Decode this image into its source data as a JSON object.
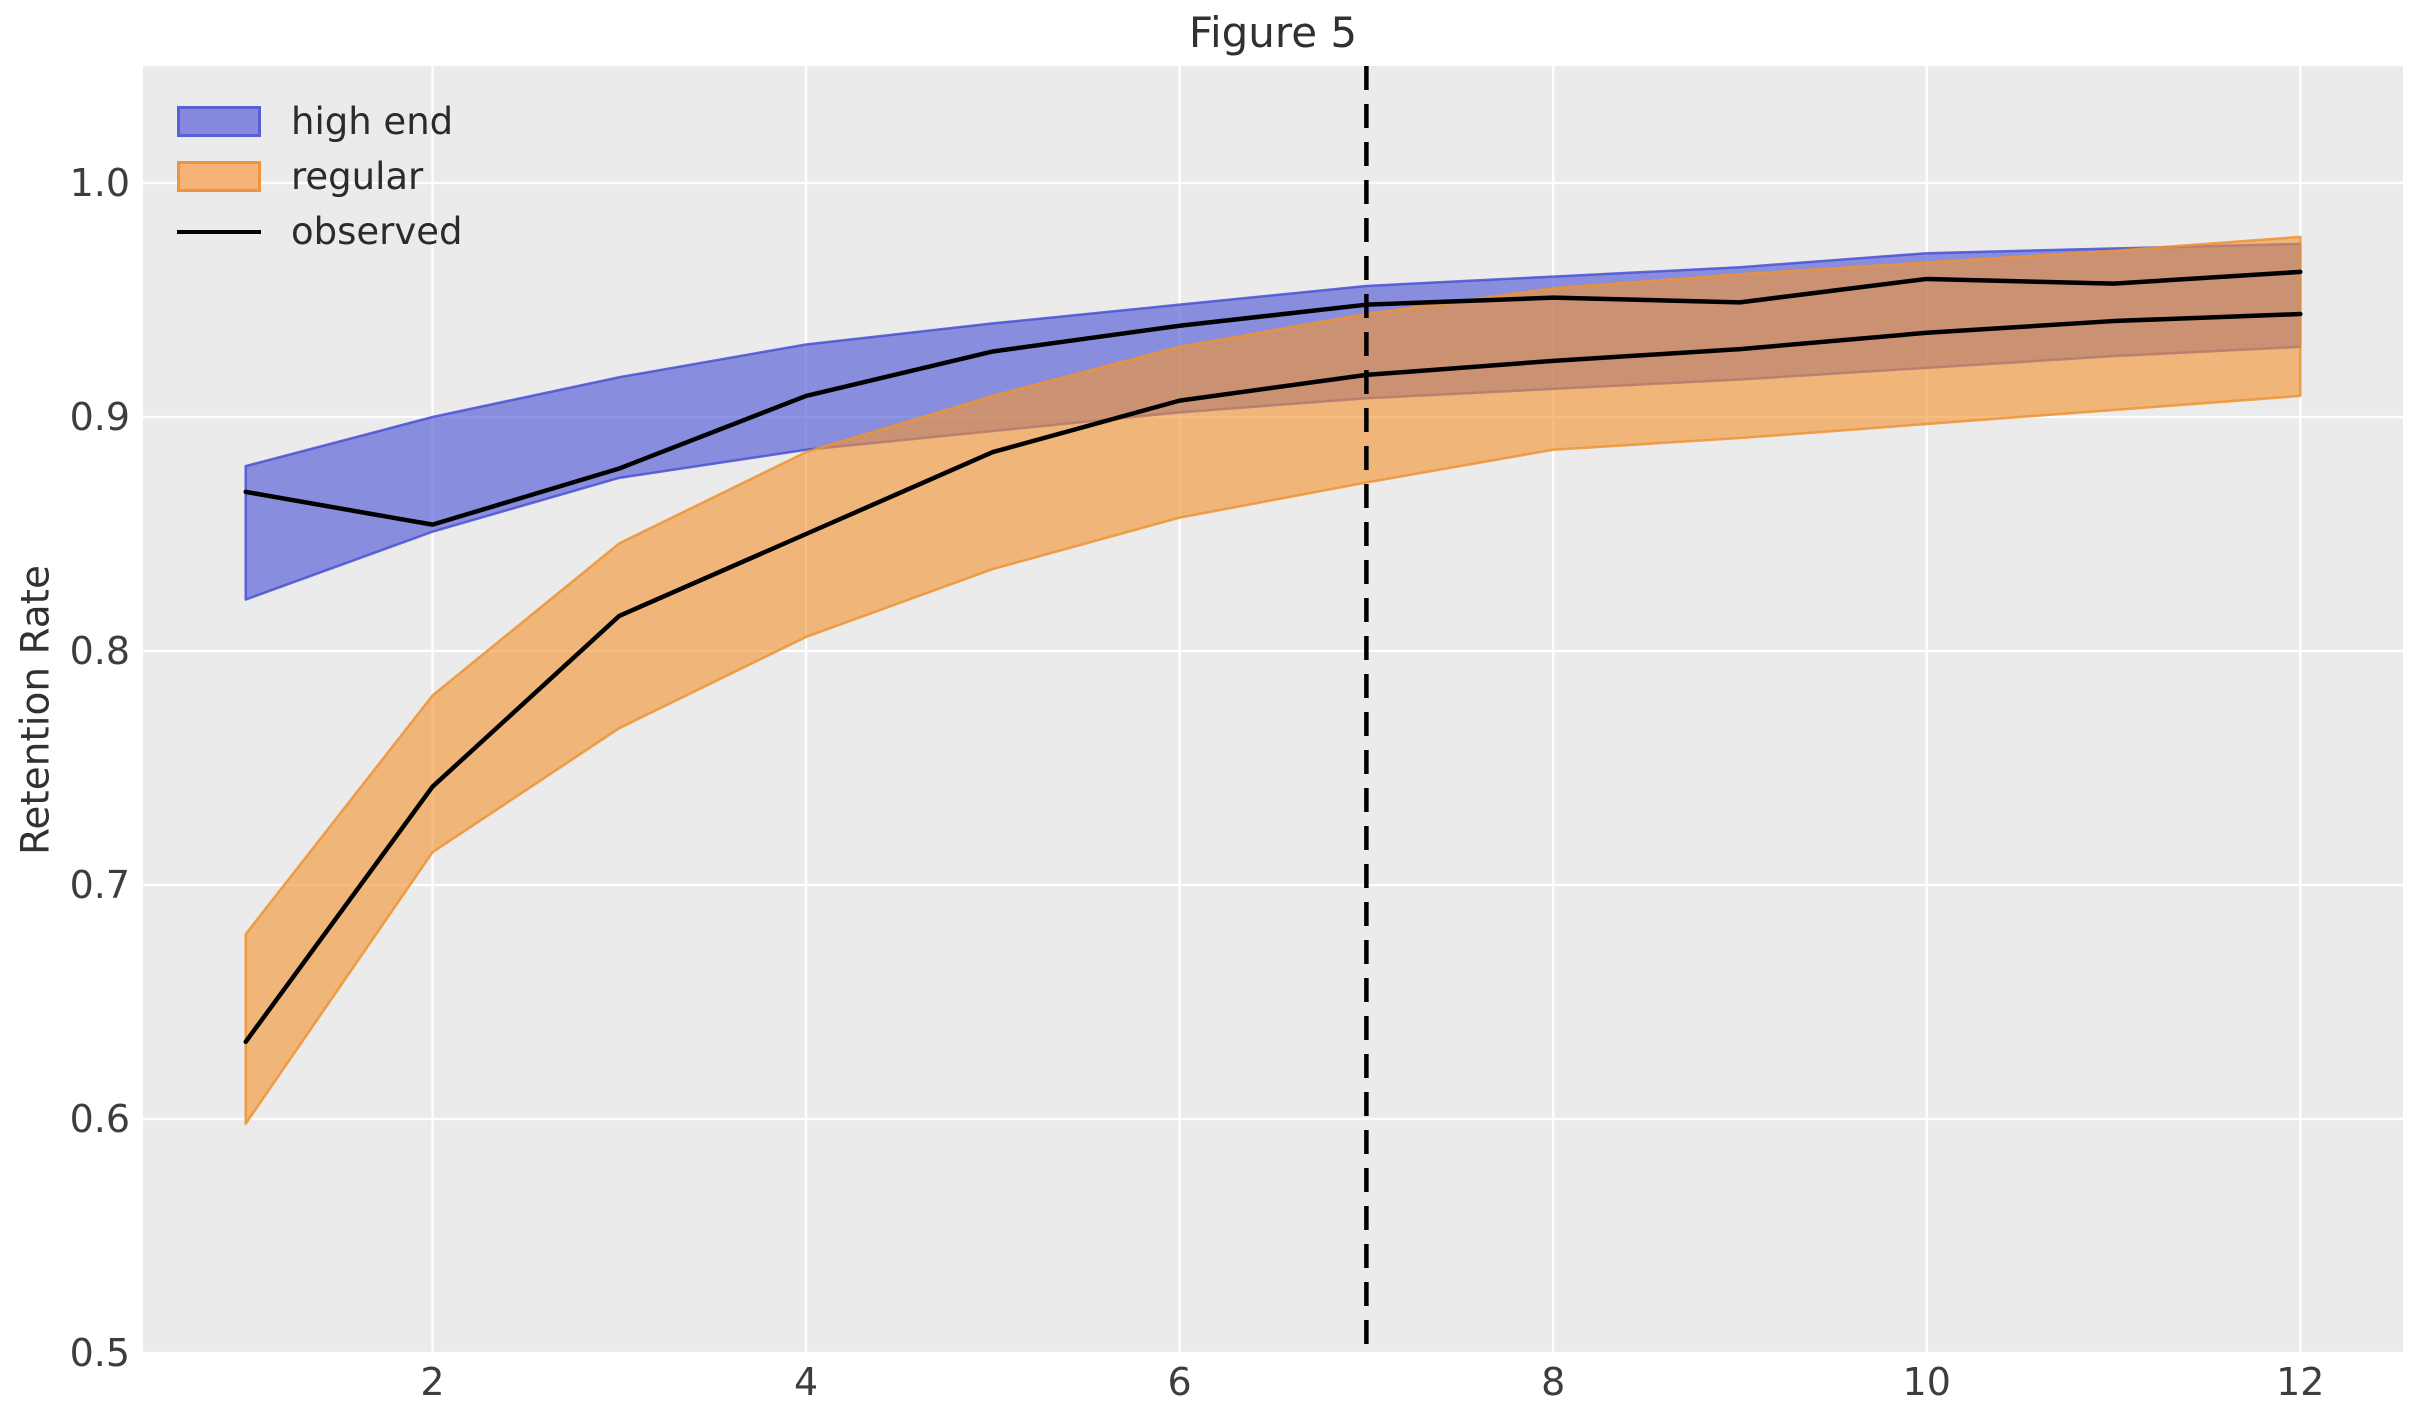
{
  "figure": {
    "background": "#ffffff",
    "plot_background": "#ebebeb",
    "grid_color": "#ffffff",
    "text_color": "#313131"
  },
  "chart_data": {
    "type": "area",
    "title": "Figure 5",
    "xlabel": "",
    "ylabel": "Retention Rate",
    "xlim": [
      0.45,
      12.55
    ],
    "ylim": [
      0.5,
      1.05
    ],
    "grid": true,
    "legend_position": "upper left",
    "x_ticks": [
      2,
      4,
      6,
      8,
      10,
      12
    ],
    "x_tick_labels": [
      "2",
      "4",
      "6",
      "8",
      "10",
      "12"
    ],
    "y_ticks": [
      0.5,
      0.6,
      0.7,
      0.8,
      0.9,
      1.0
    ],
    "y_tick_labels": [
      "0.5",
      "0.6",
      "0.7",
      "0.8",
      "0.9",
      "1.0"
    ],
    "vline": {
      "x": 7,
      "style": "dashed",
      "color": "#000000"
    },
    "x": [
      1,
      2,
      3,
      4,
      5,
      6,
      7,
      8,
      9,
      10,
      11,
      12
    ],
    "series": [
      {
        "name": "high end",
        "type": "band",
        "upper": [
          0.879,
          0.9,
          0.917,
          0.931,
          0.94,
          0.948,
          0.956,
          0.96,
          0.964,
          0.97,
          0.972,
          0.974
        ],
        "lower": [
          0.822,
          0.851,
          0.874,
          0.886,
          0.894,
          0.902,
          0.908,
          0.912,
          0.916,
          0.921,
          0.926,
          0.93
        ],
        "fill_color": "#565cd8",
        "fill_opacity": 0.66,
        "edge_color": "#4a51d4",
        "legend_fill": "#8689de",
        "legend_edge": "#5a60d8"
      },
      {
        "name": "regular",
        "type": "band",
        "upper": [
          0.679,
          0.781,
          0.846,
          0.885,
          0.909,
          0.93,
          0.944,
          0.955,
          0.961,
          0.966,
          0.971,
          0.977
        ],
        "lower": [
          0.598,
          0.714,
          0.767,
          0.806,
          0.835,
          0.857,
          0.872,
          0.886,
          0.891,
          0.897,
          0.903,
          0.909
        ],
        "fill_color": "#f49432",
        "fill_opacity": 0.62,
        "edge_color": "#ed9333",
        "legend_fill": "#f5b377",
        "legend_edge": "#ec9440"
      },
      {
        "name": "observed",
        "type": "line",
        "color": "#000000",
        "lines": [
          [
            0.868,
            0.854,
            0.878,
            0.909,
            0.928,
            0.939,
            0.948,
            0.951,
            0.949,
            0.959,
            0.957,
            0.962
          ],
          [
            0.633,
            0.742,
            0.815,
            0.85,
            0.885,
            0.907,
            0.918,
            0.924,
            0.929,
            0.936,
            0.941,
            0.944
          ]
        ]
      }
    ]
  }
}
